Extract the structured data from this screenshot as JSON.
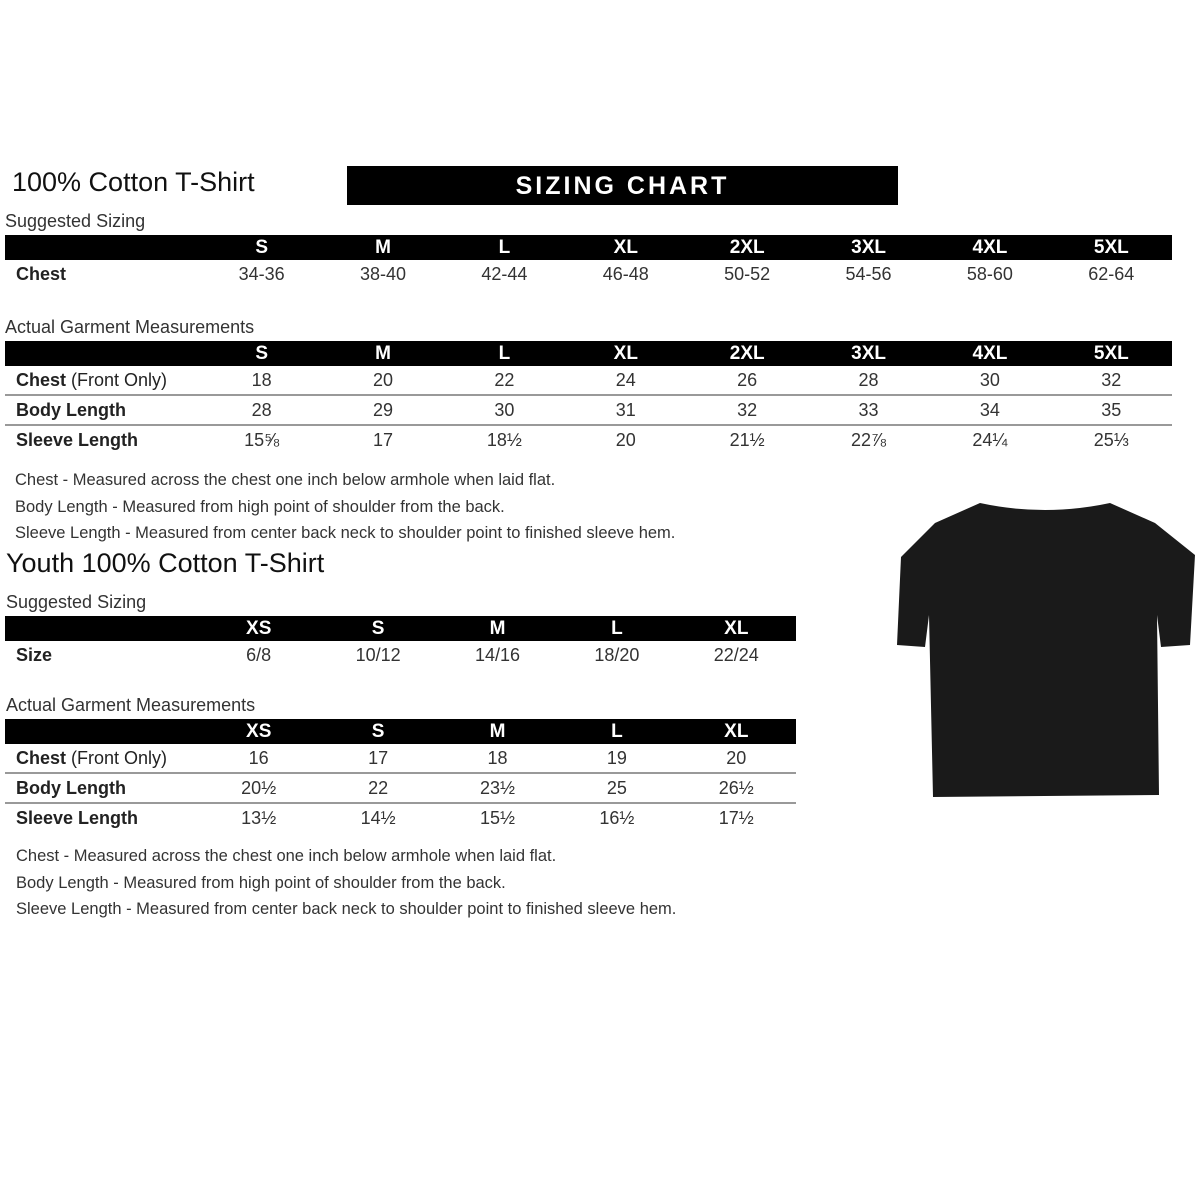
{
  "adult": {
    "title": "100% Cotton T-Shirt",
    "banner": "SIZING CHART",
    "suggested": {
      "label": "Suggested Sizing",
      "sizes": [
        "S",
        "M",
        "L",
        "XL",
        "2XL",
        "3XL",
        "4XL",
        "5XL"
      ],
      "rows": [
        {
          "label": "Chest",
          "values": [
            "34-36",
            "38-40",
            "42-44",
            "46-48",
            "50-52",
            "54-56",
            "58-60",
            "62-64"
          ]
        }
      ]
    },
    "actual": {
      "label": "Actual Garment Measurements",
      "sizes": [
        "S",
        "M",
        "L",
        "XL",
        "2XL",
        "3XL",
        "4XL",
        "5XL"
      ],
      "rows": [
        {
          "label": "Chest",
          "label_note": " (Front Only)",
          "values": [
            "18",
            "20",
            "22",
            "24",
            "26",
            "28",
            "30",
            "32"
          ]
        },
        {
          "label": "Body Length",
          "values": [
            "28",
            "29",
            "30",
            "31",
            "32",
            "33",
            "34",
            "35"
          ]
        },
        {
          "label": "Sleeve Length",
          "values": [
            "15⅝",
            "17",
            "18½",
            "20",
            "21½",
            "22⅞",
            "24¼",
            "25⅓"
          ]
        }
      ]
    },
    "notes": [
      "Chest - Measured across the chest one inch below armhole when laid flat.",
      "Body Length - Measured from high point of shoulder from the back.",
      "Sleeve Length - Measured from center back neck to shoulder point to finished sleeve hem."
    ]
  },
  "youth": {
    "title": "Youth 100% Cotton T-Shirt",
    "suggested": {
      "label": "Suggested Sizing",
      "sizes": [
        "XS",
        "S",
        "M",
        "L",
        "XL"
      ],
      "rows": [
        {
          "label": "Size",
          "values": [
            "6/8",
            "10/12",
            "14/16",
            "18/20",
            "22/24"
          ]
        }
      ]
    },
    "actual": {
      "label": "Actual Garment Measurements",
      "sizes": [
        "XS",
        "S",
        "M",
        "L",
        "XL"
      ],
      "rows": [
        {
          "label": "Chest",
          "label_note": " (Front Only)",
          "values": [
            "16",
            "17",
            "18",
            "19",
            "20"
          ]
        },
        {
          "label": "Body Length",
          "values": [
            "20½",
            "22",
            "23½",
            "25",
            "26½"
          ]
        },
        {
          "label": "Sleeve Length",
          "values": [
            "13½",
            "14½",
            "15½",
            "16½",
            "17½"
          ]
        }
      ]
    },
    "notes": [
      "Chest - Measured across the chest one inch below armhole when laid flat.",
      "Body Length - Measured from high point of shoulder from the back.",
      "Sleeve Length - Measured from center back neck to shoulder point to finished sleeve hem."
    ]
  },
  "colors": {
    "header_bg": "#000000",
    "shirt": "#1a1a1a"
  }
}
